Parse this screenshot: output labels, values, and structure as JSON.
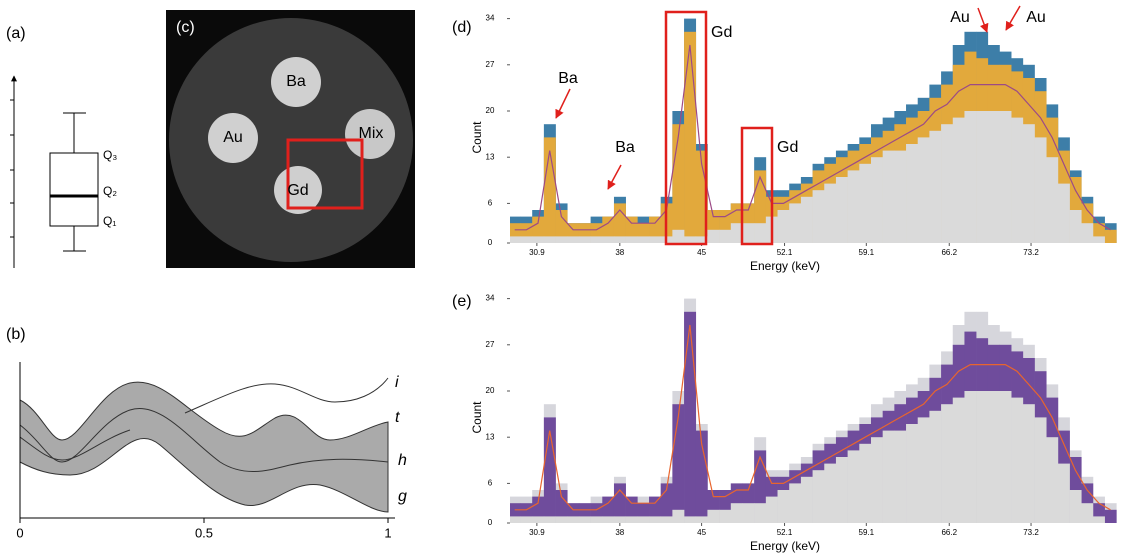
{
  "panels": {
    "a": {
      "label": "(a)",
      "q3": "Q₃",
      "q2": "Q₂",
      "q1": "Q₁"
    },
    "b": {
      "label": "(b)",
      "xlim": [
        0,
        1
      ],
      "xticks": [
        0,
        0.5,
        1
      ],
      "curves": [
        "i",
        "t",
        "h",
        "g"
      ]
    },
    "c": {
      "label": "(c)",
      "regions": [
        "Ba",
        "Au",
        "Mix",
        "Gd"
      ]
    }
  },
  "chart_data": [
    {
      "type": "step",
      "panel_label": "(d)",
      "xlabel": "Energy (keV)",
      "ylabel": "Count",
      "xlim": [
        28.6,
        81.5
      ],
      "xticks": [
        30.9,
        38,
        45,
        52.1,
        59.1,
        66.2,
        73.2
      ],
      "ylim": [
        0,
        35
      ],
      "yticks": [
        0,
        6,
        13,
        20,
        27,
        34
      ],
      "annotations": [
        "Ba",
        "Ba",
        "Gd",
        "Gd",
        "Au",
        "Au"
      ],
      "x": [
        29,
        30,
        31,
        32,
        33,
        34,
        35,
        36,
        37,
        38,
        39,
        40,
        41,
        42,
        43,
        44,
        45,
        46,
        47,
        48,
        49,
        50,
        51,
        52,
        53,
        54,
        55,
        56,
        57,
        58,
        59,
        60,
        61,
        62,
        63,
        64,
        65,
        66,
        67,
        68,
        69,
        70,
        71,
        72,
        73,
        74,
        75,
        76,
        77,
        78,
        79,
        80
      ],
      "series": [
        {
          "kind": "area",
          "color": "#3d7ea8",
          "values": [
            4,
            4,
            5,
            18,
            6,
            3,
            3,
            4,
            4,
            7,
            4,
            4,
            4,
            7,
            20,
            34,
            15,
            5,
            5,
            6,
            6,
            13,
            8,
            8,
            9,
            10,
            12,
            13,
            14,
            15,
            16,
            18,
            19,
            20,
            21,
            22,
            24,
            26,
            30,
            32,
            32,
            30,
            29,
            28,
            27,
            25,
            21,
            16,
            11,
            7,
            4,
            3
          ]
        },
        {
          "kind": "area",
          "color": "#e2a93c",
          "values": [
            3,
            3,
            4,
            16,
            5,
            3,
            3,
            3,
            4,
            6,
            4,
            3,
            4,
            6,
            18,
            32,
            14,
            5,
            5,
            6,
            6,
            11,
            7,
            7,
            8,
            9,
            11,
            12,
            13,
            14,
            15,
            16,
            17,
            18,
            19,
            20,
            22,
            24,
            27,
            29,
            28,
            27,
            27,
            26,
            25,
            23,
            19,
            14,
            10,
            6,
            3,
            2
          ]
        },
        {
          "kind": "area",
          "color": "#dadada",
          "values": [
            1,
            1,
            1,
            1,
            1,
            1,
            1,
            1,
            1,
            1,
            1,
            1,
            1,
            1,
            2,
            1,
            1,
            2,
            2,
            3,
            3,
            3,
            4,
            5,
            6,
            7,
            8,
            9,
            10,
            11,
            12,
            13,
            14,
            14,
            15,
            16,
            17,
            18,
            19,
            20,
            20,
            20,
            20,
            19,
            18,
            16,
            13,
            9,
            5,
            3,
            1,
            0
          ]
        },
        {
          "kind": "line",
          "color": "#9c4a86",
          "values": [
            2,
            2,
            3,
            14,
            4,
            2,
            2,
            2,
            3,
            5,
            3,
            3,
            3,
            5,
            16,
            30,
            12,
            4,
            4,
            5,
            5,
            10,
            6,
            6,
            7,
            8,
            9,
            10,
            11,
            12,
            13,
            14,
            15,
            16,
            17,
            18,
            20,
            21,
            23,
            24,
            24,
            24,
            24,
            23,
            21,
            19,
            16,
            12,
            8,
            5,
            3,
            2
          ]
        }
      ]
    },
    {
      "type": "step",
      "panel_label": "(e)",
      "xlabel": "Energy (keV)",
      "ylabel": "Count",
      "xlim": [
        28.6,
        81.5
      ],
      "xticks": [
        30.9,
        38,
        45,
        52.1,
        59.1,
        66.2,
        73.2
      ],
      "ylim": [
        0,
        35
      ],
      "yticks": [
        0,
        6,
        13,
        20,
        27,
        34
      ],
      "x": [
        29,
        30,
        31,
        32,
        33,
        34,
        35,
        36,
        37,
        38,
        39,
        40,
        41,
        42,
        43,
        44,
        45,
        46,
        47,
        48,
        49,
        50,
        51,
        52,
        53,
        54,
        55,
        56,
        57,
        58,
        59,
        60,
        61,
        62,
        63,
        64,
        65,
        66,
        67,
        68,
        69,
        70,
        71,
        72,
        73,
        74,
        75,
        76,
        77,
        78,
        79,
        80
      ],
      "series": [
        {
          "kind": "area",
          "color": "#d6d6dc",
          "values": [
            4,
            4,
            5,
            18,
            6,
            3,
            3,
            4,
            4,
            7,
            4,
            4,
            4,
            7,
            20,
            34,
            15,
            5,
            5,
            6,
            6,
            13,
            8,
            8,
            9,
            10,
            12,
            13,
            14,
            15,
            16,
            18,
            19,
            20,
            21,
            22,
            24,
            26,
            30,
            32,
            32,
            30,
            29,
            28,
            27,
            25,
            21,
            16,
            11,
            7,
            4,
            3
          ]
        },
        {
          "kind": "area",
          "color": "#6f4c9c",
          "values": [
            3,
            3,
            4,
            16,
            5,
            3,
            3,
            3,
            4,
            6,
            4,
            3,
            4,
            6,
            18,
            32,
            14,
            5,
            5,
            6,
            6,
            11,
            7,
            7,
            8,
            9,
            11,
            12,
            13,
            14,
            15,
            16,
            17,
            18,
            19,
            20,
            22,
            24,
            27,
            29,
            28,
            27,
            27,
            26,
            25,
            23,
            19,
            14,
            10,
            6,
            3,
            2
          ]
        },
        {
          "kind": "area",
          "color": "#dadada",
          "values": [
            1,
            1,
            1,
            1,
            1,
            1,
            1,
            1,
            1,
            1,
            1,
            1,
            1,
            1,
            2,
            1,
            1,
            2,
            2,
            3,
            3,
            3,
            4,
            5,
            6,
            7,
            8,
            9,
            10,
            11,
            12,
            13,
            14,
            14,
            15,
            16,
            17,
            18,
            19,
            20,
            20,
            20,
            20,
            19,
            18,
            16,
            13,
            9,
            5,
            3,
            1,
            0
          ]
        },
        {
          "kind": "line",
          "color": "#e8652e",
          "values": [
            2,
            2,
            3,
            14,
            4,
            2,
            2,
            2,
            3,
            5,
            3,
            3,
            3,
            5,
            16,
            30,
            12,
            4,
            4,
            5,
            5,
            10,
            6,
            6,
            7,
            8,
            9,
            10,
            11,
            12,
            13,
            14,
            15,
            16,
            17,
            18,
            20,
            21,
            23,
            24,
            24,
            24,
            24,
            23,
            21,
            19,
            16,
            12,
            8,
            5,
            3,
            2
          ]
        }
      ]
    }
  ]
}
